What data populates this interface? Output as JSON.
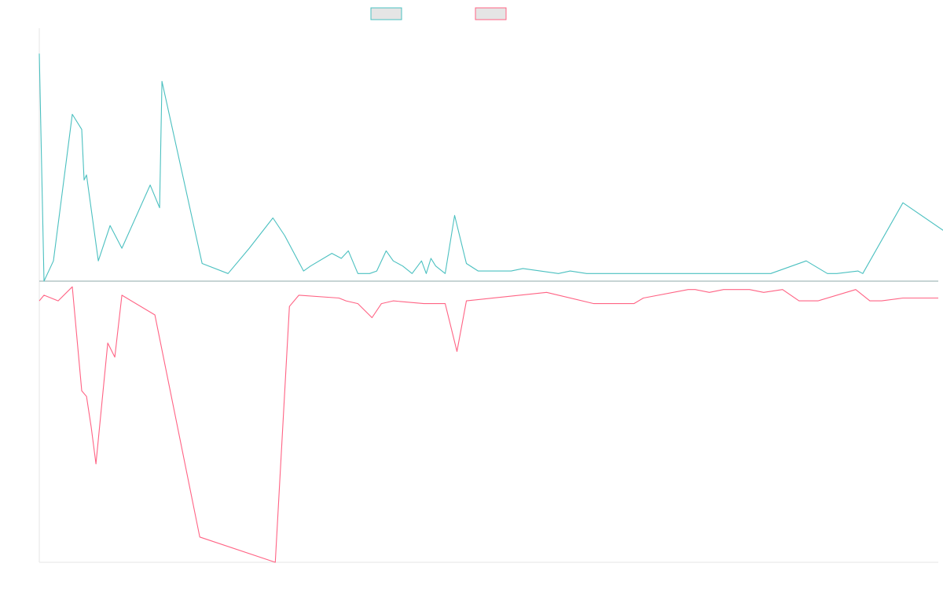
{
  "chart_data": {
    "type": "line",
    "title": "",
    "xlabel": "",
    "ylabel": "",
    "grid": false,
    "legend": {
      "position": "top-center"
    },
    "x": {
      "start": 0,
      "end": 381,
      "step": 1
    },
    "ylim": [
      -100,
      100
    ],
    "series": [
      {
        "name": "",
        "color": "#4BC0C0",
        "fill": "#E5E5E5",
        "sign": "positive",
        "points": [
          [
            0,
            90
          ],
          [
            2,
            0
          ],
          [
            6,
            8
          ],
          [
            14,
            66
          ],
          [
            18,
            60
          ],
          [
            19,
            40
          ],
          [
            20,
            42
          ],
          [
            25,
            8
          ],
          [
            30,
            22
          ],
          [
            35,
            13
          ],
          [
            47,
            38
          ],
          [
            51,
            29
          ],
          [
            52,
            79
          ],
          [
            69,
            7
          ],
          [
            80,
            3
          ],
          [
            89,
            13
          ],
          [
            99,
            25
          ],
          [
            104,
            18
          ],
          [
            112,
            4
          ],
          [
            115,
            6
          ],
          [
            124,
            11
          ],
          [
            128,
            9
          ],
          [
            131,
            12
          ],
          [
            135,
            3
          ],
          [
            140,
            3
          ],
          [
            143,
            4
          ],
          [
            147,
            12
          ],
          [
            150,
            8
          ],
          [
            154,
            6
          ],
          [
            158,
            3
          ],
          [
            162,
            8
          ],
          [
            164,
            3
          ],
          [
            166,
            9
          ],
          [
            168,
            6
          ],
          [
            172,
            3
          ],
          [
            176,
            26
          ],
          [
            181,
            7
          ],
          [
            186,
            4
          ],
          [
            200,
            4
          ],
          [
            205,
            5
          ],
          [
            220,
            3
          ],
          [
            225,
            4
          ],
          [
            232,
            3
          ],
          [
            240,
            3
          ],
          [
            268,
            3
          ],
          [
            270,
            3
          ],
          [
            272,
            3
          ],
          [
            275,
            3
          ],
          [
            288,
            3
          ],
          [
            290,
            3
          ],
          [
            302,
            3
          ],
          [
            307,
            3
          ],
          [
            308,
            3
          ],
          [
            310,
            3
          ],
          [
            325,
            8
          ],
          [
            334,
            3
          ],
          [
            338,
            3
          ],
          [
            347,
            4
          ],
          [
            349,
            3
          ],
          [
            366,
            31
          ],
          [
            391,
            15
          ]
        ]
      },
      {
        "name": "",
        "color": "#FF6384",
        "fill": "#E5E5E5",
        "sign": "negative",
        "points": [
          [
            0,
            -7
          ],
          [
            2,
            -5
          ],
          [
            8,
            -7
          ],
          [
            14,
            -2
          ],
          [
            18,
            -39
          ],
          [
            20,
            -41
          ],
          [
            22,
            -52
          ],
          [
            24,
            -65
          ],
          [
            29,
            -22
          ],
          [
            32,
            -27
          ],
          [
            35,
            -5
          ],
          [
            49,
            -12
          ],
          [
            68,
            -91
          ],
          [
            100,
            -100
          ],
          [
            106,
            -9
          ],
          [
            110,
            -5
          ],
          [
            127,
            -6
          ],
          [
            130,
            -7
          ],
          [
            135,
            -8
          ],
          [
            141,
            -13
          ],
          [
            145,
            -8
          ],
          [
            150,
            -7
          ],
          [
            163,
            -8
          ],
          [
            172,
            -8
          ],
          [
            177,
            -25
          ],
          [
            181,
            -7
          ],
          [
            215,
            -4
          ],
          [
            235,
            -8
          ],
          [
            245,
            -8
          ],
          [
            252,
            -8
          ],
          [
            256,
            -6
          ],
          [
            275,
            -3
          ],
          [
            278,
            -3
          ],
          [
            284,
            -4
          ],
          [
            290,
            -3
          ],
          [
            301,
            -3
          ],
          [
            307,
            -4
          ],
          [
            315,
            -3
          ],
          [
            322,
            -7
          ],
          [
            330,
            -7
          ],
          [
            346,
            -3
          ],
          [
            352,
            -7
          ],
          [
            357,
            -7
          ],
          [
            366,
            -6
          ],
          [
            369,
            -6
          ],
          [
            381,
            -6
          ]
        ]
      }
    ]
  }
}
